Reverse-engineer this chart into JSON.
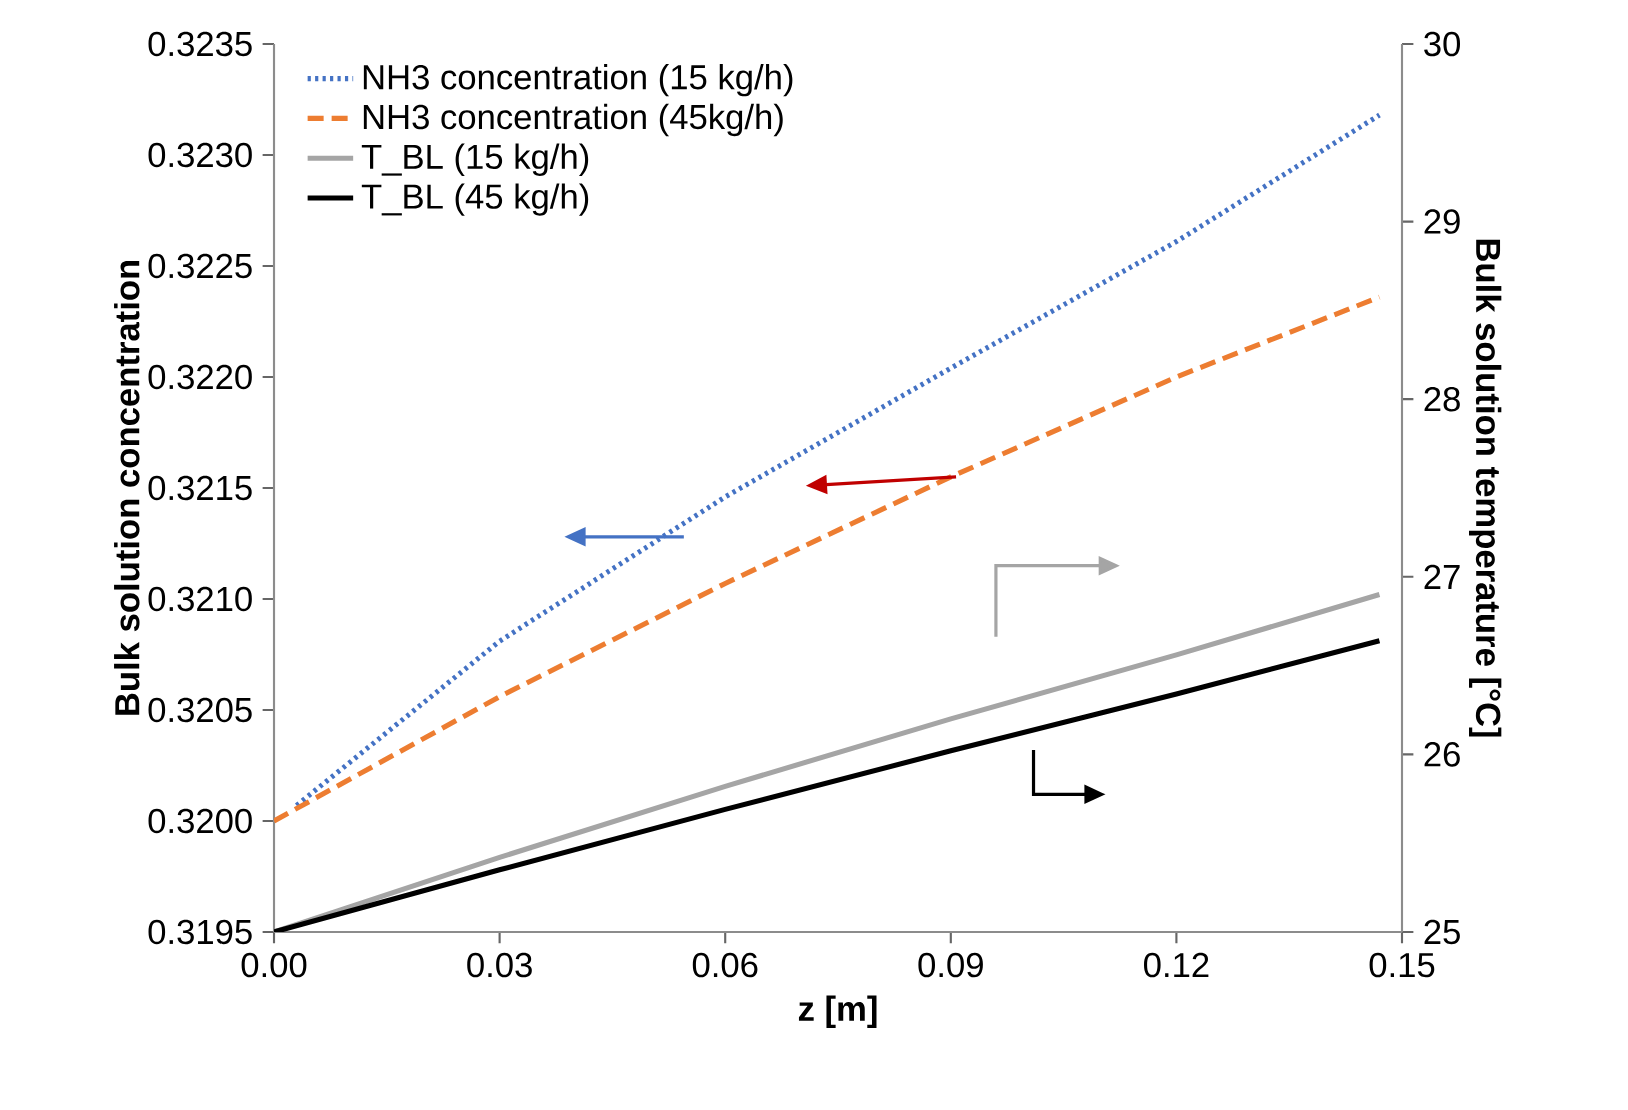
{
  "chart_data": {
    "type": "line",
    "xlabel": "z [m]",
    "ylabel": "Bulk solution concentration",
    "y2label": "Bulk solution temperature [°C]",
    "xlim": [
      0,
      0.15
    ],
    "xticks": [
      {
        "value": 0,
        "label": "0.00"
      },
      {
        "value": 0.03,
        "label": "0.03"
      },
      {
        "value": 0.06,
        "label": "0.06"
      },
      {
        "value": 0.09,
        "label": "0.09"
      },
      {
        "value": 0.12,
        "label": "0.12"
      },
      {
        "value": 0.15,
        "label": "0.15"
      }
    ],
    "ylim": [
      0.3195,
      0.3235
    ],
    "yticks": [
      {
        "value": 0.3195,
        "label": "0.3195"
      },
      {
        "value": 0.32,
        "label": "0.3200"
      },
      {
        "value": 0.3205,
        "label": "0.3205"
      },
      {
        "value": 0.321,
        "label": "0.3210"
      },
      {
        "value": 0.3215,
        "label": "0.3215"
      },
      {
        "value": 0.322,
        "label": "0.3220"
      },
      {
        "value": 0.3225,
        "label": "0.3225"
      },
      {
        "value": 0.323,
        "label": "0.3230"
      },
      {
        "value": 0.3235,
        "label": "0.3235"
      }
    ],
    "y2lim": [
      25,
      30
    ],
    "y2ticks": [
      25,
      26,
      27,
      28,
      29,
      30
    ],
    "legend": "top left",
    "grid": false,
    "series": [
      {
        "name": "NH3 concentration (15 kg/h)",
        "color": "#4472c4",
        "line_style": "dotted",
        "x": [
          0.003,
          0.03,
          0.06,
          0.09,
          0.12,
          0.147
        ],
        "values": [
          0.32007,
          0.32081,
          0.32146,
          0.32204,
          0.32261,
          0.32318
        ]
      },
      {
        "name": "NH3 concentration (45kg/h)",
        "color": "#ed7d31",
        "line_style": "dashed",
        "x": [
          0,
          0.03,
          0.06,
          0.09,
          0.12,
          0.147
        ],
        "values": [
          0.32,
          0.32056,
          0.32107,
          0.32155,
          0.322,
          0.32236
        ]
      },
      {
        "name": "T_BL (15 kg/h)",
        "color": "#a5a5a5",
        "line_style": "solid",
        "axis": "y2",
        "x": [
          0,
          0.03,
          0.06,
          0.09,
          0.12,
          0.147
        ],
        "values": [
          25,
          25.42,
          25.82,
          26.2,
          26.56,
          26.9
        ]
      },
      {
        "name": "T_BL (45 kg/h)",
        "color": "#000000",
        "line_style": "solid",
        "axis": "y2",
        "x": [
          0,
          0.03,
          0.06,
          0.09,
          0.12,
          0.147
        ],
        "values": [
          25,
          25.35,
          25.69,
          26.02,
          26.34,
          26.64
        ]
      }
    ]
  }
}
